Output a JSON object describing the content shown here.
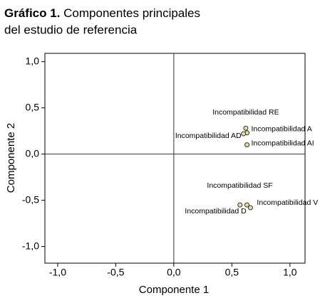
{
  "chart_data": {
    "type": "scatter",
    "title_prefix": "Gráfico 1.",
    "title": [
      "Componentes principales",
      "del estudio de referencia"
    ],
    "x_label": "Componente 1",
    "y_label": "Componente 2",
    "labels": [
      "Incompatibilidad RE",
      "Incompatibilidad A",
      "Incompatibilidad AD",
      "Incompatibilidad AI",
      "Incompatibilidad SF",
      "Incompatibilidad D",
      "Incompatibilidad V"
    ],
    "x": [
      0.62,
      0.63,
      0.6,
      0.63,
      0.63,
      0.57,
      0.66
    ],
    "values": [
      0.28,
      0.23,
      0.22,
      0.1,
      -0.55,
      -0.55,
      -0.58
    ],
    "color": "#e8dba8",
    "xlim": [
      -1.11,
      1.13
    ],
    "ylim": [
      -1.18,
      1.09
    ],
    "xticks": [
      {
        "value": -1,
        "label": "-1,0"
      },
      {
        "value": -0.5,
        "label": "-0,5"
      },
      {
        "value": 0,
        "label": "0,0"
      },
      {
        "value": 0.5,
        "label": "0,5"
      },
      {
        "value": 1,
        "label": "1,0"
      }
    ],
    "yticks": [
      {
        "value": -1,
        "label": "-1,0"
      },
      {
        "value": -0.5,
        "label": "-0,5"
      },
      {
        "value": 0,
        "label": "0,0"
      },
      {
        "value": 0.5,
        "label": "0,5"
      },
      {
        "value": 1,
        "label": "1,0"
      }
    ]
  }
}
